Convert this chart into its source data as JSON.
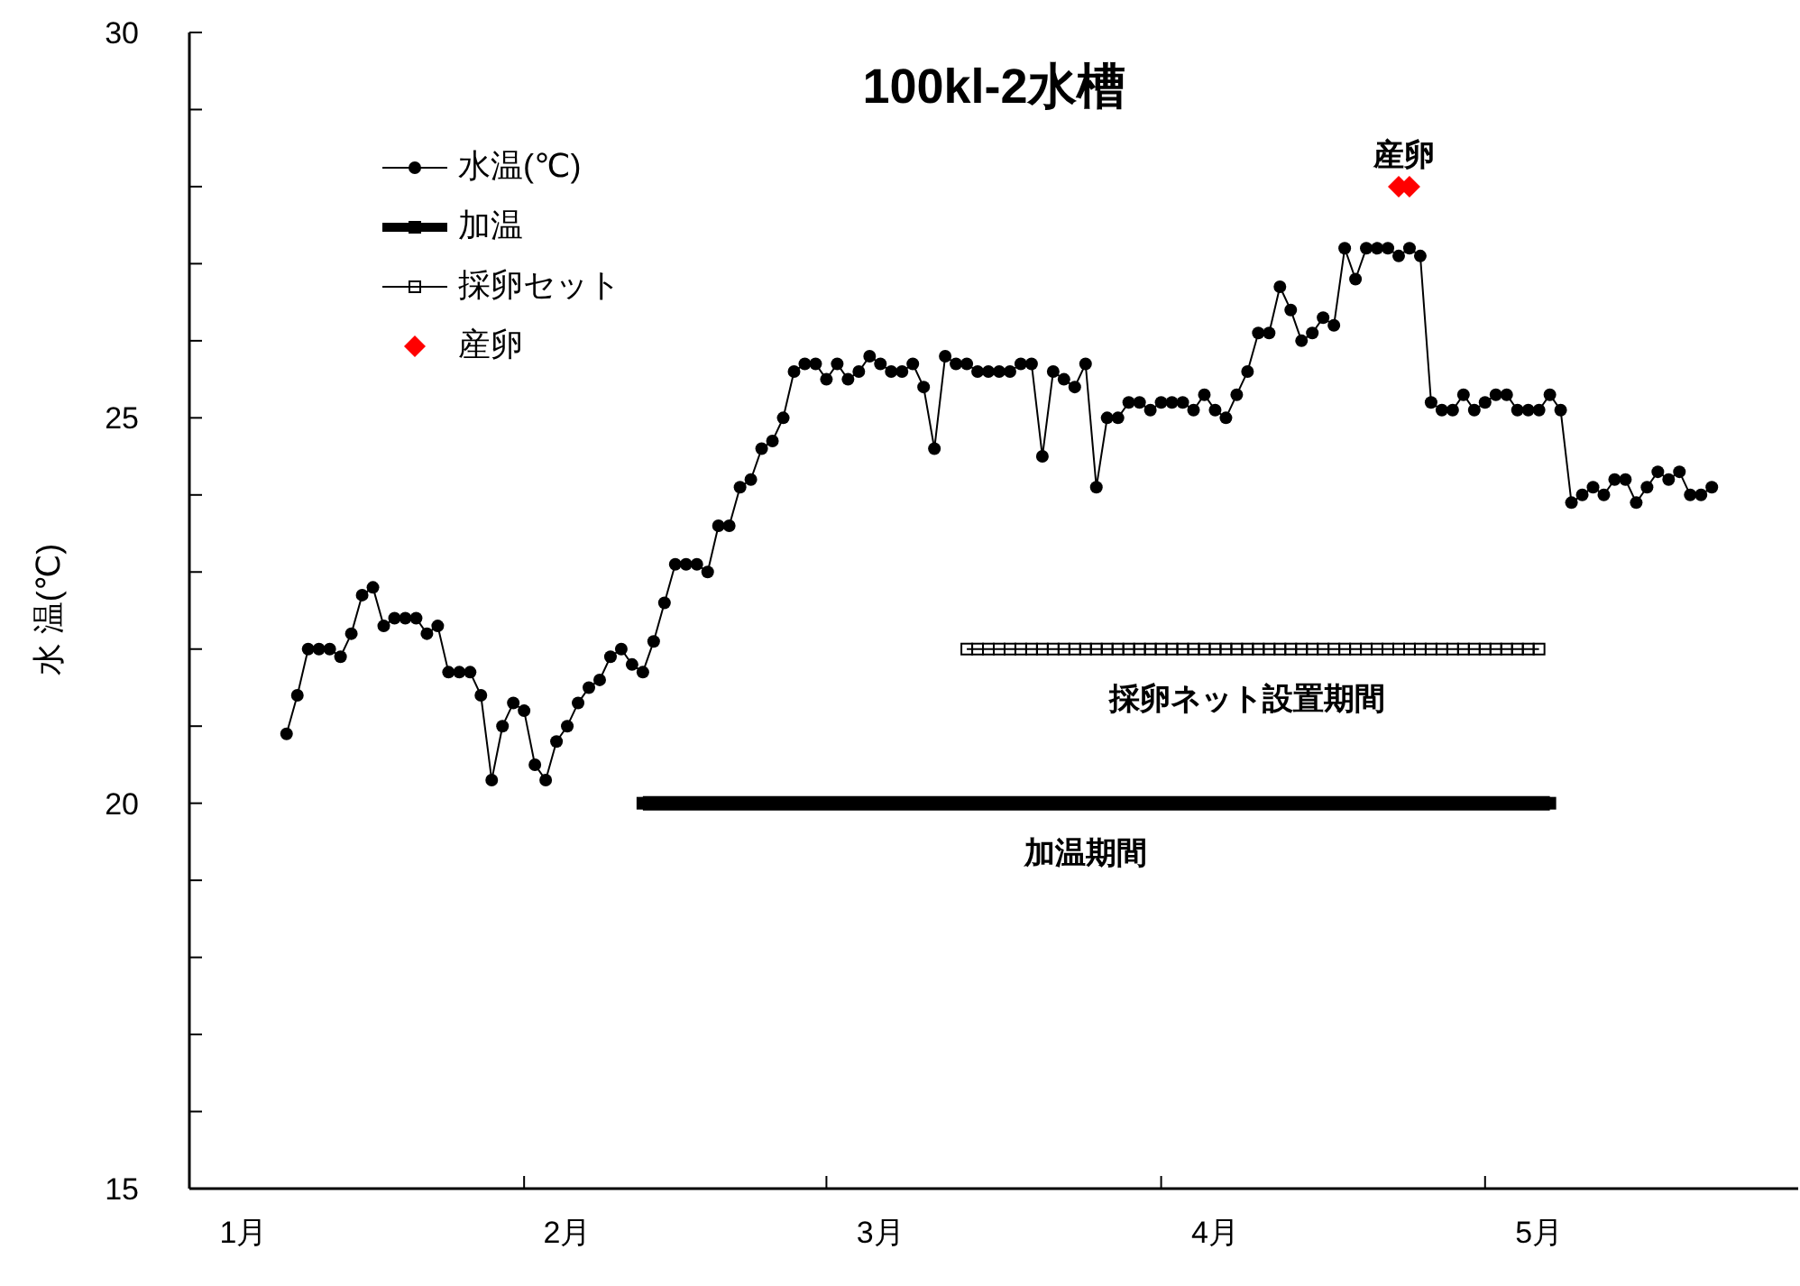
{
  "chart_data": {
    "type": "line",
    "title": "100kl-2水槽",
    "ylabel": "水 温(℃)",
    "xlim": [
      "--01-01",
      "--05-30"
    ],
    "xticks": [
      {
        "value": "--01-06",
        "label": "1月"
      },
      {
        "value": "--02-01",
        "label": null
      },
      {
        "value": "--02-05",
        "label": "2月"
      },
      {
        "value": "--03-01",
        "label": null
      },
      {
        "value": "--03-06",
        "label": "3月"
      },
      {
        "value": "--04-01",
        "label": null
      },
      {
        "value": "--04-06",
        "label": "4月"
      },
      {
        "value": "--05-01",
        "label": null
      },
      {
        "value": "--05-06",
        "label": "5月"
      }
    ],
    "ylim": [
      15,
      30
    ],
    "yticks": [
      15,
      {
        "value": 16,
        "label": null
      },
      {
        "value": 17,
        "label": null
      },
      {
        "value": 18,
        "label": null
      },
      {
        "value": 19,
        "label": null
      },
      20,
      {
        "value": 21,
        "label": null
      },
      {
        "value": 22,
        "label": null
      },
      {
        "value": 23,
        "label": null
      },
      {
        "value": 24,
        "label": null
      },
      25,
      {
        "value": 26,
        "label": null
      },
      {
        "value": 27,
        "label": null
      },
      {
        "value": 28,
        "label": null
      },
      {
        "value": 29,
        "label": null
      },
      30
    ],
    "legend": "top left",
    "grid": false,
    "series": [
      {
        "name": "水温(℃)",
        "color": "#000000",
        "marker": "circle",
        "x": [
          "--01-10",
          "--01-11",
          "--01-12",
          "--01-13",
          "--01-14",
          "--01-15",
          "--01-16",
          "--01-17",
          "--01-18",
          "--01-19",
          "--01-20",
          "--01-21",
          "--01-22",
          "--01-23",
          "--01-24",
          "--01-25",
          "--01-26",
          "--01-27",
          "--01-28",
          "--01-29",
          "--01-30",
          "--01-31",
          "--02-01",
          "--02-02",
          "--02-03",
          "--02-04",
          "--02-05",
          "--02-06",
          "--02-07",
          "--02-08",
          "--02-09",
          "--02-10",
          "--02-11",
          "--02-12",
          "--02-13",
          "--02-14",
          "--02-15",
          "--02-16",
          "--02-17",
          "--02-18",
          "--02-19",
          "--02-20",
          "--02-21",
          "--02-22",
          "--02-23",
          "--02-24",
          "--02-25",
          "--02-26",
          "--02-27",
          "--02-28",
          "--03-01",
          "--03-02",
          "--03-03",
          "--03-04",
          "--03-05",
          "--03-06",
          "--03-07",
          "--03-08",
          "--03-09",
          "--03-10",
          "--03-11",
          "--03-12",
          "--03-13",
          "--03-14",
          "--03-15",
          "--03-16",
          "--03-17",
          "--03-18",
          "--03-19",
          "--03-20",
          "--03-21",
          "--03-22",
          "--03-23",
          "--03-24",
          "--03-25",
          "--03-26",
          "--03-27",
          "--03-28",
          "--03-29",
          "--03-30",
          "--03-31",
          "--04-01",
          "--04-02",
          "--04-03",
          "--04-04",
          "--04-05",
          "--04-06",
          "--04-07",
          "--04-08",
          "--04-09",
          "--04-10",
          "--04-11",
          "--04-12",
          "--04-13",
          "--04-14",
          "--04-15",
          "--04-16",
          "--04-17",
          "--04-18",
          "--04-19",
          "--04-20",
          "--04-21",
          "--04-22",
          "--04-23",
          "--04-24",
          "--04-25",
          "--04-26",
          "--04-27",
          "--04-28",
          "--04-29",
          "--04-30",
          "--05-01",
          "--05-02",
          "--05-03",
          "--05-04",
          "--05-05",
          "--05-06",
          "--05-07",
          "--05-08",
          "--05-09",
          "--05-10",
          "--05-11",
          "--05-12",
          "--05-13",
          "--05-14",
          "--05-15",
          "--05-16",
          "--05-17",
          "--05-18",
          "--05-19",
          "--05-20",
          "--05-21",
          "--05-22"
        ],
        "values": [
          20.9,
          21.4,
          22.0,
          22.0,
          22.0,
          21.9,
          22.2,
          22.7,
          22.8,
          22.3,
          22.4,
          22.4,
          22.4,
          22.2,
          22.3,
          21.7,
          21.7,
          21.7,
          21.4,
          20.3,
          21.0,
          21.3,
          21.2,
          20.5,
          20.3,
          20.8,
          21.0,
          21.3,
          21.5,
          21.6,
          21.9,
          22.0,
          21.8,
          21.7,
          22.1,
          22.6,
          23.1,
          23.1,
          23.1,
          23.0,
          23.6,
          23.6,
          24.1,
          24.2,
          24.6,
          24.7,
          25.0,
          25.6,
          25.7,
          25.7,
          25.5,
          25.7,
          25.5,
          25.6,
          25.8,
          25.7,
          25.6,
          25.6,
          25.7,
          25.4,
          24.6,
          25.8,
          25.7,
          25.7,
          25.6,
          25.6,
          25.6,
          25.6,
          25.7,
          25.7,
          24.5,
          25.6,
          25.5,
          25.4,
          25.7,
          24.1,
          25.0,
          25.0,
          25.2,
          25.2,
          25.1,
          25.2,
          25.2,
          25.2,
          25.1,
          25.3,
          25.1,
          25.0,
          25.3,
          25.6,
          26.1,
          26.1,
          26.7,
          26.4,
          26.0,
          26.1,
          26.3,
          26.2,
          27.2,
          26.8,
          27.2,
          27.2,
          27.2,
          27.1,
          27.2,
          27.1,
          25.2,
          25.1,
          25.1,
          25.3,
          25.1,
          25.2,
          25.3,
          25.3,
          25.1,
          25.1,
          25.1,
          25.3,
          25.1,
          23.9,
          24.0,
          24.1,
          24.0,
          24.2,
          24.2,
          23.9,
          24.1,
          24.3,
          24.2,
          24.3,
          24.0,
          24.0,
          24.1
        ]
      },
      {
        "name": "加温",
        "color": "#000000",
        "marker": "square",
        "x": [
          "--02-12",
          "--02-13",
          "--02-14",
          "--02-15",
          "--02-16",
          "--02-17",
          "--02-18",
          "--02-19",
          "--02-20",
          "--02-21",
          "--02-22",
          "--02-23",
          "--02-24",
          "--02-25",
          "--02-26",
          "--02-27",
          "--02-28",
          "--03-01",
          "--03-02",
          "--03-03",
          "--03-04",
          "--03-05",
          "--03-06",
          "--03-07",
          "--03-08",
          "--03-09",
          "--03-10",
          "--03-11",
          "--03-12",
          "--03-13",
          "--03-14",
          "--03-15",
          "--03-16",
          "--03-17",
          "--03-18",
          "--03-19",
          "--03-20",
          "--03-21",
          "--03-22",
          "--03-23",
          "--03-24",
          "--03-25",
          "--03-26",
          "--03-27",
          "--03-28",
          "--03-29",
          "--03-30",
          "--03-31",
          "--04-01",
          "--04-02",
          "--04-03",
          "--04-04",
          "--04-05",
          "--04-06",
          "--04-07",
          "--04-08",
          "--04-09",
          "--04-10",
          "--04-11",
          "--04-12",
          "--04-13",
          "--04-14",
          "--04-15",
          "--04-16",
          "--04-17",
          "--04-18",
          "--04-19",
          "--04-20",
          "--04-21",
          "--04-22",
          "--04-23",
          "--04-24",
          "--04-25",
          "--04-26",
          "--04-27",
          "--04-28",
          "--04-29",
          "--04-30",
          "--05-01",
          "--05-02",
          "--05-03",
          "--05-04",
          "--05-05",
          "--05-06",
          "--05-07"
        ],
        "values": [
          20,
          20,
          20,
          20,
          20,
          20,
          20,
          20,
          20,
          20,
          20,
          20,
          20,
          20,
          20,
          20,
          20,
          20,
          20,
          20,
          20,
          20,
          20,
          20,
          20,
          20,
          20,
          20,
          20,
          20,
          20,
          20,
          20,
          20,
          20,
          20,
          20,
          20,
          20,
          20,
          20,
          20,
          20,
          20,
          20,
          20,
          20,
          20,
          20,
          20,
          20,
          20,
          20,
          20,
          20,
          20,
          20,
          20,
          20,
          20,
          20,
          20,
          20,
          20,
          20,
          20,
          20,
          20,
          20,
          20,
          20,
          20,
          20,
          20,
          20,
          20,
          20,
          20,
          20,
          20,
          20,
          20,
          20,
          20,
          20
        ]
      },
      {
        "name": "採卵セット",
        "color": "#000000",
        "marker": "square",
        "x": [
          "--03-14",
          "--03-15",
          "--03-16",
          "--03-17",
          "--03-18",
          "--03-19",
          "--03-20",
          "--03-21",
          "--03-22",
          "--03-23",
          "--03-24",
          "--03-25",
          "--03-26",
          "--03-27",
          "--03-28",
          "--03-29",
          "--03-30",
          "--03-31",
          "--04-01",
          "--04-02",
          "--04-03",
          "--04-04",
          "--04-05",
          "--04-06",
          "--04-07",
          "--04-08",
          "--04-09",
          "--04-10",
          "--04-11",
          "--04-12",
          "--04-13",
          "--04-14",
          "--04-15",
          "--04-16",
          "--04-17",
          "--04-18",
          "--04-19",
          "--04-20",
          "--04-21",
          "--04-22",
          "--04-23",
          "--04-24",
          "--04-25",
          "--04-26",
          "--04-27",
          "--04-28",
          "--04-29",
          "--04-30",
          "--05-01",
          "--05-02",
          "--05-03",
          "--05-04",
          "--05-05",
          "--05-06"
        ],
        "values": [
          22,
          22,
          22,
          22,
          22,
          22,
          22,
          22,
          22,
          22,
          22,
          22,
          22,
          22,
          22,
          22,
          22,
          22,
          22,
          22,
          22,
          22,
          22,
          22,
          22,
          22,
          22,
          22,
          22,
          22,
          22,
          22,
          22,
          22,
          22,
          22,
          22,
          22,
          22,
          22,
          22,
          22,
          22,
          22,
          22,
          22,
          22,
          22,
          22,
          22,
          22,
          22,
          22,
          22
        ]
      },
      {
        "name": "産卵",
        "type": "scatter",
        "color": "#ff0000",
        "marker": "diamond",
        "x": [
          "--04-23",
          "--04-24"
        ],
        "values": [
          28,
          28
        ]
      }
    ],
    "annotations": [
      {
        "text": "産卵",
        "x": "--04-23",
        "y": 28
      },
      {
        "text": "採卵ネット設置期間",
        "x": "--04-09",
        "y": 22
      },
      {
        "text": "加温期間",
        "x": "--03-25",
        "y": 20
      }
    ]
  }
}
